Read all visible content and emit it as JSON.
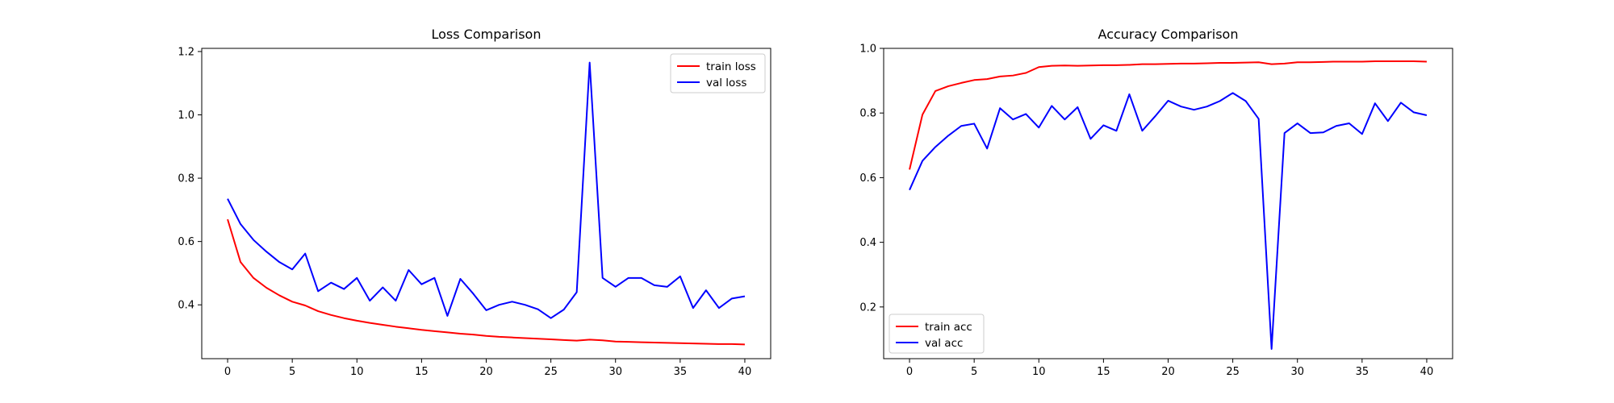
{
  "chart_data": [
    {
      "type": "line",
      "title": "Loss Comparison",
      "xlabel": "",
      "ylabel": "",
      "xlim": [
        -2,
        42
      ],
      "ylim": [
        0.23,
        1.21
      ],
      "x_ticks": [
        0,
        5,
        10,
        15,
        20,
        25,
        30,
        35,
        40
      ],
      "y_ticks": [
        0.4,
        0.6,
        0.8,
        1.0,
        1.2
      ],
      "y_tick_labels": [
        "0.4",
        "0.6",
        "0.8",
        "1.0",
        "1.2"
      ],
      "legend": "top-right",
      "grid": false,
      "x": [
        0,
        1,
        2,
        3,
        4,
        5,
        6,
        7,
        8,
        9,
        10,
        11,
        12,
        13,
        14,
        15,
        16,
        17,
        18,
        19,
        20,
        21,
        22,
        23,
        24,
        25,
        26,
        27,
        28,
        29,
        30,
        31,
        32,
        33,
        34,
        35,
        36,
        37,
        38,
        39,
        40
      ],
      "series": [
        {
          "name": "train loss",
          "color": "#ff0000",
          "values": [
            0.67,
            0.535,
            0.485,
            0.454,
            0.43,
            0.41,
            0.398,
            0.38,
            0.368,
            0.358,
            0.35,
            0.343,
            0.337,
            0.331,
            0.326,
            0.321,
            0.317,
            0.313,
            0.309,
            0.306,
            0.302,
            0.299,
            0.297,
            0.295,
            0.293,
            0.291,
            0.289,
            0.287,
            0.29,
            0.288,
            0.284,
            0.283,
            0.282,
            0.281,
            0.28,
            0.279,
            0.278,
            0.277,
            0.276,
            0.276,
            0.275
          ]
        },
        {
          "name": "val loss",
          "color": "#0000ff",
          "values": [
            0.735,
            0.655,
            0.605,
            0.568,
            0.535,
            0.512,
            0.562,
            0.443,
            0.47,
            0.45,
            0.485,
            0.413,
            0.455,
            0.413,
            0.51,
            0.465,
            0.485,
            0.365,
            0.482,
            0.435,
            0.383,
            0.4,
            0.41,
            0.4,
            0.386,
            0.358,
            0.385,
            0.44,
            1.165,
            0.485,
            0.457,
            0.485,
            0.485,
            0.462,
            0.457,
            0.49,
            0.39,
            0.446,
            0.39,
            0.42,
            0.427
          ]
        }
      ]
    },
    {
      "type": "line",
      "title": "Accuracy Comparison",
      "xlabel": "",
      "ylabel": "",
      "xlim": [
        -2,
        42
      ],
      "ylim": [
        0.04,
        1.0
      ],
      "x_ticks": [
        0,
        5,
        10,
        15,
        20,
        25,
        30,
        35,
        40
      ],
      "y_ticks": [
        0.2,
        0.4,
        0.6,
        0.8,
        1.0
      ],
      "y_tick_labels": [
        "0.2",
        "0.4",
        "0.6",
        "0.8",
        "1.0"
      ],
      "legend": "bottom-left",
      "grid": false,
      "x": [
        0,
        1,
        2,
        3,
        4,
        5,
        6,
        7,
        8,
        9,
        10,
        11,
        12,
        13,
        14,
        15,
        16,
        17,
        18,
        19,
        20,
        21,
        22,
        23,
        24,
        25,
        26,
        27,
        28,
        29,
        30,
        31,
        32,
        33,
        34,
        35,
        36,
        37,
        38,
        39,
        40
      ],
      "series": [
        {
          "name": "train acc",
          "color": "#ff0000",
          "values": [
            0.625,
            0.795,
            0.868,
            0.883,
            0.893,
            0.902,
            0.905,
            0.913,
            0.916,
            0.924,
            0.942,
            0.946,
            0.947,
            0.946,
            0.947,
            0.948,
            0.948,
            0.949,
            0.951,
            0.951,
            0.952,
            0.953,
            0.953,
            0.954,
            0.955,
            0.955,
            0.956,
            0.957,
            0.951,
            0.953,
            0.957,
            0.957,
            0.958,
            0.959,
            0.959,
            0.959,
            0.96,
            0.96,
            0.96,
            0.96,
            0.959
          ]
        },
        {
          "name": "val acc",
          "color": "#0000ff",
          "values": [
            0.562,
            0.652,
            0.695,
            0.73,
            0.76,
            0.767,
            0.69,
            0.815,
            0.78,
            0.797,
            0.755,
            0.822,
            0.78,
            0.818,
            0.72,
            0.762,
            0.745,
            0.858,
            0.745,
            0.79,
            0.838,
            0.82,
            0.81,
            0.82,
            0.837,
            0.862,
            0.837,
            0.782,
            0.07,
            0.738,
            0.768,
            0.738,
            0.74,
            0.76,
            0.768,
            0.735,
            0.83,
            0.775,
            0.832,
            0.802,
            0.793
          ]
        }
      ]
    }
  ]
}
